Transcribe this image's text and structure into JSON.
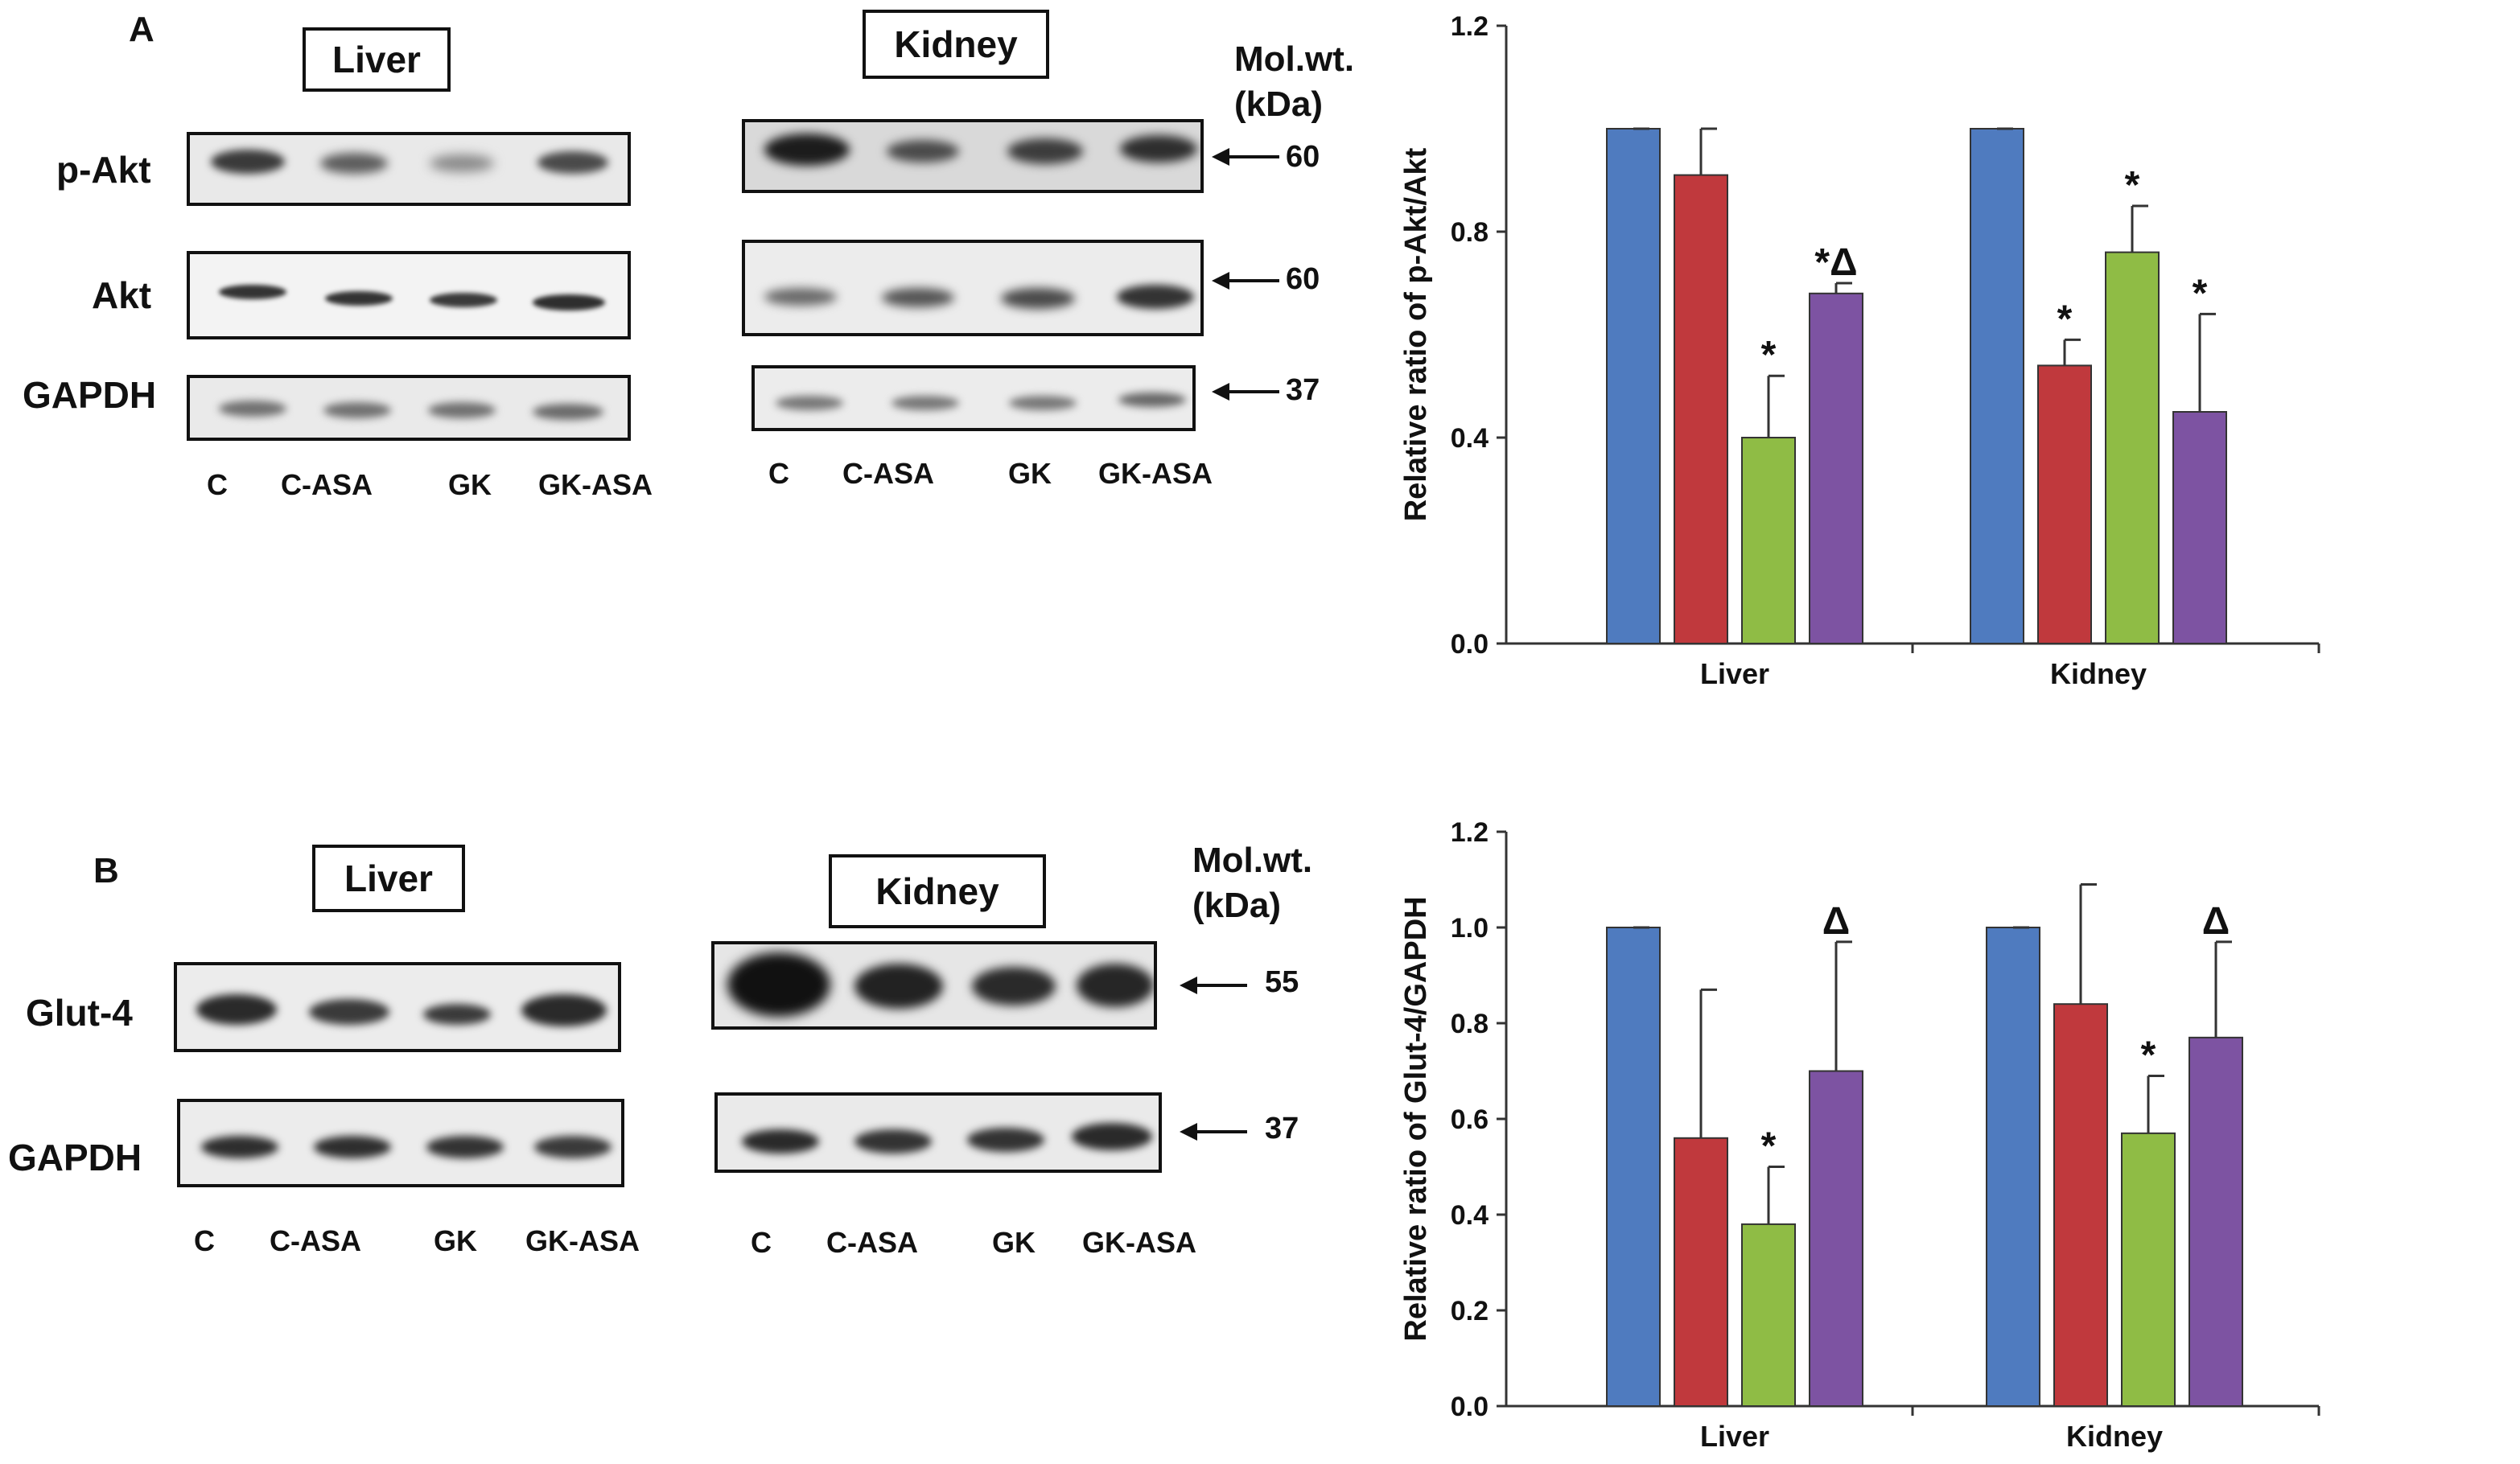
{
  "panelA": {
    "letter": "A",
    "liver_title": "Liver",
    "kidney_title": "Kidney",
    "mw_header": [
      "Mol.wt.",
      "(kDa)"
    ],
    "rows": [
      {
        "label": "p-Akt",
        "mw": "60"
      },
      {
        "label": "Akt",
        "mw": "60"
      },
      {
        "label": "GAPDH",
        "mw": "37"
      }
    ],
    "lanes": [
      "C",
      "C-ASA",
      "GK",
      "GK-ASA"
    ]
  },
  "panelB": {
    "letter": "B",
    "liver_title": "Liver",
    "kidney_title": "Kidney",
    "mw_header": [
      "Mol.wt.",
      "(kDa)"
    ],
    "rows": [
      {
        "label": "Glut-4",
        "mw": "55"
      },
      {
        "label": "GAPDH",
        "mw": "37"
      }
    ],
    "lanes": [
      "C",
      "C-ASA",
      "GK",
      "GK-ASA"
    ]
  },
  "colors": {
    "C": "#4f7bbf",
    "C-ASA": "#c0393d",
    "GK": "#8fbc45",
    "GK-ASA": "#7d53a2"
  },
  "chart_data": [
    {
      "type": "bar",
      "ylabel": "Relative ratio of p-Akt/Akt",
      "ylim": [
        0,
        1.2
      ],
      "yticks": [
        "0.0",
        "0.4",
        "0.8",
        "1.2"
      ],
      "tick_values": [
        0,
        0.4,
        0.8,
        1.2
      ],
      "categories": [
        "Liver",
        "Kidney"
      ],
      "legend_position": "right",
      "series": [
        {
          "name": "C",
          "values": [
            1.0,
            1.0
          ],
          "errors": [
            0,
            0
          ],
          "marks": [
            "",
            ""
          ]
        },
        {
          "name": "C-ASA",
          "values": [
            0.91,
            0.54
          ],
          "errors": [
            0.09,
            0.05
          ],
          "marks": [
            "",
            "*"
          ]
        },
        {
          "name": "GK",
          "values": [
            0.4,
            0.76
          ],
          "errors": [
            0.12,
            0.09
          ],
          "marks": [
            "*",
            "*"
          ]
        },
        {
          "name": "GK-ASA",
          "values": [
            0.68,
            0.45
          ],
          "errors": [
            0.02,
            0.19
          ],
          "marks": [
            "*Δ",
            "*"
          ]
        }
      ]
    },
    {
      "type": "bar",
      "ylabel": "Relative ratio of Glut-4/GAPDH",
      "ylim": [
        0,
        1.2
      ],
      "yticks": [
        "0.0",
        "0.2",
        "0.4",
        "0.6",
        "0.8",
        "1.0",
        "1.2"
      ],
      "tick_values": [
        0,
        0.2,
        0.4,
        0.6,
        0.8,
        1.0,
        1.2
      ],
      "categories": [
        "Liver",
        "Kidney"
      ],
      "legend_position": "right",
      "series": [
        {
          "name": "C",
          "values": [
            1.0,
            1.0
          ],
          "errors": [
            0,
            0
          ],
          "marks": [
            "",
            ""
          ]
        },
        {
          "name": "C-ASA",
          "values": [
            0.56,
            0.84
          ],
          "errors": [
            0.31,
            0.25
          ],
          "marks": [
            "",
            ""
          ]
        },
        {
          "name": "GK",
          "values": [
            0.38,
            0.57
          ],
          "errors": [
            0.12,
            0.12
          ],
          "marks": [
            "*",
            "*"
          ]
        },
        {
          "name": "GK-ASA",
          "values": [
            0.7,
            0.77
          ],
          "errors": [
            0.27,
            0.2
          ],
          "marks": [
            "Δ",
            "Δ"
          ]
        }
      ]
    }
  ]
}
